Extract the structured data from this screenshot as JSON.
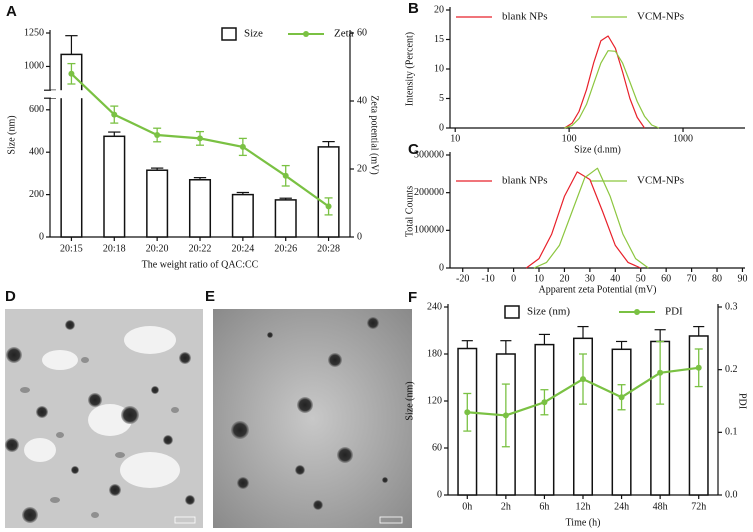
{
  "chart_data": [
    {
      "type": "bar",
      "title": "A",
      "categories": [
        "20:15",
        "20:18",
        "20:20",
        "20:22",
        "20:24",
        "20:26",
        "20:28"
      ],
      "series": [
        {
          "name": "Size",
          "type": "bar",
          "color": "#ffffff",
          "values": [
            1090,
            475,
            315,
            270,
            200,
            175,
            425
          ],
          "errors": [
            140,
            20,
            10,
            10,
            10,
            8,
            25
          ]
        },
        {
          "name": "Zeta",
          "type": "line",
          "axis": "y2",
          "color": "#7ac143",
          "values": [
            48,
            36,
            30,
            29,
            26.5,
            18,
            9
          ],
          "errors": [
            3,
            2.5,
            2,
            2,
            2.5,
            3,
            2.5
          ]
        }
      ],
      "xlabel": "The weight ratio of QAC:CC",
      "ylabel": "Size (nm)",
      "y2label": "Zeta potential (mV)",
      "ylim": [
        0,
        1250
      ],
      "ybreak": [
        650,
        830
      ],
      "yticks": [
        0,
        200,
        400,
        600,
        1000,
        1250
      ],
      "y2lim": [
        0,
        60
      ],
      "y2ticks": [
        0,
        20,
        40,
        60
      ],
      "legend": "top-right"
    },
    {
      "type": "line",
      "title": "B",
      "xscale": "log",
      "xlim": [
        9,
        3500
      ],
      "xticks": [
        10,
        100,
        1000
      ],
      "ylim": [
        0,
        20
      ],
      "yticks": [
        0,
        5,
        10,
        15,
        20
      ],
      "xlabel": "Size (d.nm)",
      "ylabel": "Intensity (Percent)",
      "series": [
        {
          "name": "blank NPs",
          "color": "#e8202a",
          "x": [
            91,
            106,
            122,
            142,
            164,
            190,
            220,
            255,
            295,
            342,
            396,
            459
          ],
          "values": [
            0,
            0.8,
            2.8,
            6.5,
            11,
            14.8,
            15.6,
            13.5,
            9.5,
            5,
            1.8,
            0
          ]
        },
        {
          "name": "VCM-NPs",
          "color": "#8cc63f",
          "x": [
            91,
            106,
            122,
            142,
            164,
            190,
            220,
            255,
            295,
            342,
            396,
            459,
            531,
            615
          ],
          "values": [
            0,
            0.4,
            1.6,
            4,
            7.5,
            11,
            13.1,
            13,
            11,
            7.8,
            4.5,
            2,
            0.5,
            0
          ]
        }
      ],
      "legend": "top-left"
    },
    {
      "type": "line",
      "title": "C",
      "xlim": [
        -25,
        91
      ],
      "xticks": [
        -20,
        -10,
        0,
        10,
        20,
        30,
        40,
        50,
        60,
        70,
        80,
        90
      ],
      "ylim": [
        0,
        300000
      ],
      "yticks": [
        0,
        100000,
        200000,
        300000
      ],
      "xlabel": "Apparent zeta Potential (mV)",
      "ylabel": "Total Counts",
      "series": [
        {
          "name": "blank NPs",
          "color": "#e8202a",
          "x": [
            5,
            10,
            15,
            20,
            25,
            30,
            35,
            40,
            45,
            50
          ],
          "values": [
            0,
            25000,
            90000,
            190000,
            255000,
            235000,
            150000,
            60000,
            15000,
            0
          ]
        },
        {
          "name": "VCM-NPs",
          "color": "#8cc63f",
          "x": [
            8,
            13,
            18,
            23,
            28,
            33,
            38,
            43,
            48,
            53
          ],
          "values": [
            0,
            15000,
            60000,
            150000,
            240000,
            265000,
            190000,
            90000,
            25000,
            0
          ]
        }
      ],
      "legend": "top-left"
    },
    {
      "type": "bar",
      "title": "F",
      "categories": [
        "0h",
        "2h",
        "6h",
        "12h",
        "24h",
        "48h",
        "72h"
      ],
      "series": [
        {
          "name": "Size (nm)",
          "type": "bar",
          "color": "#ffffff",
          "values": [
            187,
            180,
            192,
            200,
            186,
            196,
            203
          ],
          "errors": [
            10,
            17,
            13,
            15,
            10,
            15,
            12
          ]
        },
        {
          "name": "PDI",
          "type": "line",
          "axis": "y2",
          "color": "#7ac143",
          "values": [
            0.132,
            0.127,
            0.148,
            0.185,
            0.156,
            0.195,
            0.203
          ],
          "errors": [
            0.03,
            0.05,
            0.02,
            0.04,
            0.02,
            0.05,
            0.03
          ]
        }
      ],
      "xlabel": "Time (h)",
      "ylabel": "Size (nm)",
      "y2label": "PDI",
      "ylim": [
        0,
        240
      ],
      "yticks": [
        0,
        60,
        120,
        180,
        240
      ],
      "y2lim": [
        0,
        0.3
      ],
      "y2ticks": [
        {
          "value": 0,
          "label": "0.0"
        },
        0.1,
        0.2,
        0.3
      ],
      "legend": "top"
    }
  ],
  "image_panels": [
    {
      "label": "D"
    },
    {
      "label": "E"
    }
  ]
}
